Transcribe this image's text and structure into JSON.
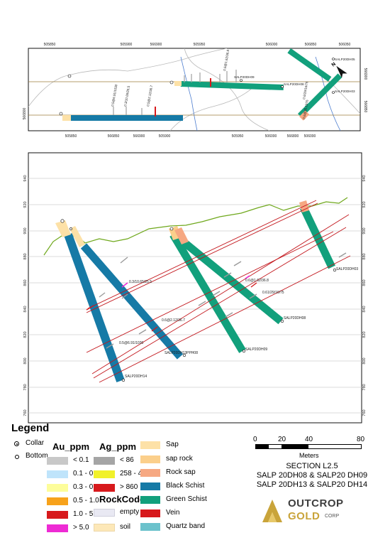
{
  "plan": {
    "top_ticks": [
      "505850",
      "505900",
      "566900",
      "505950",
      "506000",
      "506850",
      "506050"
    ],
    "bottom_ticks": [
      "505850",
      "566850",
      "566900",
      "505900",
      "505950",
      "506000",
      "566800",
      "506000"
    ],
    "right_ticks": [
      "566900",
      "566850"
    ],
    "left_ticks": [
      "566800"
    ],
    "holes": {
      "dh05": "SALP20DH05",
      "dh09": "SALP20DH09",
      "dh08": "SALP20DH08",
      "dh03": "SALP20DH03"
    },
    "intercepts": [
      "0.5@6.91/1030",
      "0.3/10.65/25.5",
      "0.5@2.12/36.7",
      "0.6@1.62/36.8",
      "0.6/29/16/75",
      "0.6@35.1976"
    ]
  },
  "section": {
    "y_ticks": [
      "940",
      "920",
      "900",
      "880",
      "860",
      "840",
      "820",
      "800",
      "780",
      "760"
    ],
    "holes": {
      "dh03": "SALP20DH03",
      "dh08": "SALP20DH08",
      "dh09": "SALP20DH09",
      "dh13": "SALP20DH13PPH08",
      "dh14": "SALP20DH14"
    },
    "intercepts": [
      "0.3/10.65/25.5",
      "0.6@2.12/36.7",
      "0.5@6.91/1030",
      "0.6@1.62/36.8",
      "0.61/29/16/75"
    ]
  },
  "legend": {
    "title": "Legend",
    "collar": "Collar",
    "bottom": "Bottom",
    "au_header": "Au_ppm",
    "au": [
      {
        "label": "< 0.1",
        "color": "#c8c8c8"
      },
      {
        "label": "0.1 - 0.3",
        "color": "#bfe4fb"
      },
      {
        "label": "0.3 - 0.5",
        "color": "#fdfd9a"
      },
      {
        "label": "0.5 - 1.0",
        "color": "#f7a21b"
      },
      {
        "label": "1.0 - 5.0",
        "color": "#d7191c"
      },
      {
        "label": "> 5.0",
        "color": "#ee2bd4"
      }
    ],
    "ag_header": "Ag_ppm",
    "ag": [
      {
        "label": "< 86",
        "color": "#a5a5a5"
      },
      {
        "label": "258 - 430",
        "color": "#f1f12a"
      },
      {
        "label": "> 860",
        "color": "#d7191c"
      }
    ],
    "rock_header": "RockCode",
    "rock_small": [
      {
        "label": "empty",
        "color": "#e9e9f3"
      },
      {
        "label": "soil",
        "color": "#fde8b8"
      }
    ],
    "rock": [
      {
        "label": "Sap",
        "color": "#fde1a7"
      },
      {
        "label": "sap rock",
        "color": "#fbcf8b"
      },
      {
        "label": "Rock sap",
        "color": "#f6a882"
      },
      {
        "label": "Black Schist",
        "color": "#167aa6"
      },
      {
        "label": "Green Schist",
        "color": "#12a07c"
      },
      {
        "label": "Vein",
        "color": "#d7191c"
      },
      {
        "label": "Quartz band",
        "color": "#6cc2cc"
      }
    ]
  },
  "scale": {
    "ticks": [
      "0",
      "20",
      "40",
      "80"
    ],
    "unit": "Meters"
  },
  "section_info": [
    "SECTION  L2.5",
    "SALP 20DH08 & SALP20 DH09",
    "SALP 20DH13 & SALP20 DH14"
  ],
  "logo": {
    "line1": "OUTCROP",
    "line2": "GOLD",
    "line3": "CORP"
  }
}
